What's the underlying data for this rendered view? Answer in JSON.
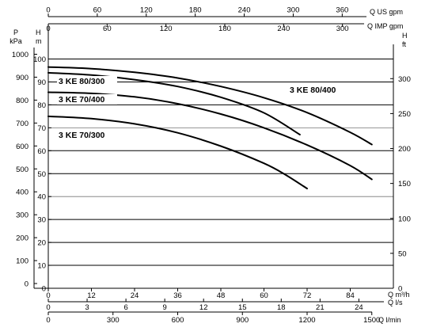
{
  "chart_data": {
    "type": "line",
    "title": "",
    "grid": true,
    "x_axis": {
      "label": "Q m³/h",
      "lim": [
        0,
        96
      ],
      "ticks": [
        0,
        12,
        24,
        36,
        48,
        60,
        72,
        84
      ]
    },
    "y_axis": {
      "label": "H m",
      "lim": [
        0,
        100
      ],
      "ticks": [
        0,
        10,
        20,
        30,
        40,
        50,
        60,
        70,
        80,
        90,
        100
      ]
    },
    "secondary_axes": {
      "pressure": {
        "label_line1": "P",
        "label_line2": "kPa",
        "ticks": [
          "0",
          "100",
          "200",
          "300",
          "400",
          "500",
          "600",
          "700",
          "800",
          "900",
          "1000"
        ]
      },
      "head_ft": {
        "label_line1": "H",
        "label_line2": "ft",
        "ticks": [
          0,
          50,
          100,
          150,
          200,
          250,
          300
        ],
        "ft_per_m": 3.28084
      },
      "q_us_gpm": {
        "label": "Q US gpm",
        "ticks": [
          0,
          60,
          120,
          180,
          240,
          300,
          360
        ],
        "gpm_per_m3h": 4.4029
      },
      "q_imp_gpm": {
        "label": "Q IMP gpm",
        "ticks": [
          0,
          60,
          120,
          180,
          240,
          300
        ],
        "gpm_per_m3h": 3.6662
      },
      "q_ls": {
        "label": "Q l/s",
        "ticks": [
          0,
          3,
          6,
          9,
          12,
          15,
          18,
          21,
          24
        ],
        "ls_per_m3h": 0.27778
      },
      "q_lmin": {
        "label": "Q l/min",
        "ticks": [
          0,
          300,
          600,
          900,
          1200,
          1500
        ],
        "lmin_per_m3h": 16.6667
      }
    },
    "series": [
      {
        "name": "3 KE 80/400",
        "x": [
          0,
          12,
          24,
          36,
          48,
          60,
          72,
          84,
          90
        ],
        "y": [
          96.5,
          95.8,
          94.2,
          91.7,
          88.0,
          83.1,
          76.6,
          68.0,
          62.7
        ]
      },
      {
        "name": "3 KE 80/300",
        "x": [
          0,
          12,
          24,
          36,
          48,
          60,
          70
        ],
        "y": [
          94.0,
          93.0,
          91.0,
          88.0,
          83.3,
          76.5,
          67.0
        ]
      },
      {
        "name": "3 KE 70/400",
        "x": [
          0,
          12,
          24,
          36,
          48,
          60,
          72,
          84,
          90
        ],
        "y": [
          85.5,
          85.0,
          83.5,
          80.5,
          76.0,
          70.0,
          62.5,
          53.5,
          47.5
        ]
      },
      {
        "name": "3 KE 70/300",
        "x": [
          0,
          12,
          24,
          36,
          48,
          60,
          66,
          72
        ],
        "y": [
          75.0,
          74.0,
          71.7,
          67.8,
          62.0,
          54.5,
          49.5,
          43.5
        ]
      }
    ]
  }
}
